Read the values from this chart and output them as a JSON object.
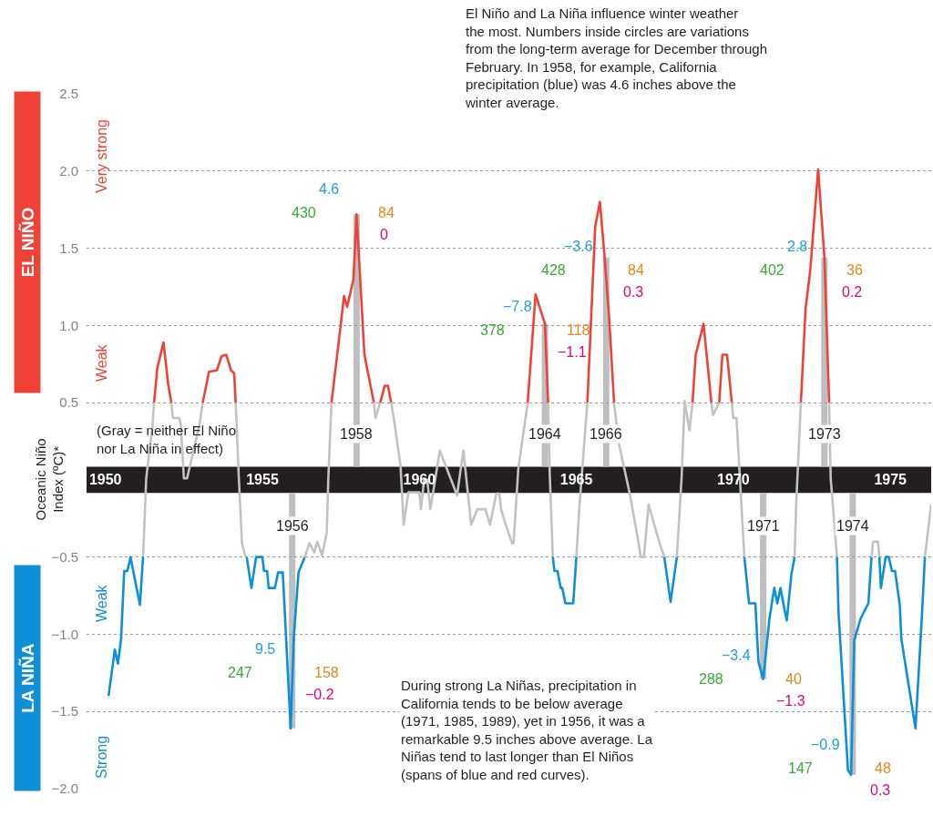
{
  "chart_data": {
    "type": "line",
    "ylabel": "Oceanic Niño Index (ºC)*",
    "xlim": [
      1949.4,
      1976.3
    ],
    "xticks": [
      1950,
      1955,
      1960,
      1965,
      1970,
      1975
    ],
    "ylim": [
      -2.0,
      2.5
    ],
    "yticks": [
      {
        "value": -2,
        "label": "−2.0"
      },
      {
        "value": -1.5,
        "label": "−1.5"
      },
      {
        "value": -1,
        "label": "−1.0"
      },
      {
        "value": -0.5,
        "label": "−0.5"
      },
      {
        "value": 0.5,
        "label": "0.5"
      },
      {
        "value": 1,
        "label": "1.0"
      },
      {
        "value": 1.5,
        "label": "1.5"
      },
      {
        "value": 2,
        "label": "2.0"
      },
      {
        "value": 2.5,
        "label": "2.5"
      }
    ],
    "grid": "y",
    "line_style": "solid",
    "marker": "none",
    "series": [
      {
        "color": "#c2c2c2",
        "x": [
          1951.2,
          1951.3,
          1951.5,
          1951.55,
          1951.8,
          1952.1,
          1952.15,
          1952.35,
          1952.4,
          1952.5,
          1952.6,
          1953.0,
          1953.1,
          1953.6,
          1954.15,
          1954.25,
          1954.35,
          1954.45,
          1954.5,
          1955.4,
          1956.35,
          1956.5,
          1956.65,
          1956.75,
          1956.9,
          1957.05,
          1957.1,
          1957.2,
          1957.9,
          1958.55,
          1958.6,
          1958.75,
          1958.9,
          1959.1,
          1959.2,
          1959.4,
          1959.5,
          1959.65,
          1960.0,
          1960.05,
          1960.15,
          1960.25,
          1960.35,
          1960.65,
          1961.2,
          1961.4,
          1961.65,
          1961.85,
          1962.1,
          1962.25,
          1962.45,
          1962.55,
          1962.6,
          1962.75,
          1962.95,
          1963.0,
          1963.15,
          1963.45,
          1963.8,
          1964.1,
          1964.15,
          1964.25,
          1964.6,
          1965.0,
          1965.1,
          1965.35,
          1965.8,
          1966.2,
          1966.35,
          1966.7,
          1966.95,
          1967.05,
          1967.15,
          1967.3,
          1967.65,
          1967.8,
          1968.0,
          1968.2,
          1968.35,
          1968.45,
          1968.6,
          1968.7,
          1969.0,
          1969.3,
          1969.35,
          1969.55,
          1969.7,
          1969.95,
          1970.0,
          1970.1,
          1970.35,
          1971.2,
          1971.95,
          1972.0,
          1972.15,
          1972.6,
          1973.05,
          1973.1,
          1973.3,
          1973.9,
          1974.4,
          1974.45,
          1974.6,
          1974.65,
          1975.4,
          1976.1,
          1976.3
        ],
        "values": [
          -0.5,
          0.01,
          0.35,
          0.5,
          null,
          0.5,
          0.4,
          0.4,
          0.36,
          0.01,
          0.01,
          0.36,
          0.5,
          null,
          0.5,
          0.01,
          -0.41,
          -0.49,
          -0.5,
          null,
          -0.5,
          -0.41,
          -0.47,
          -0.4,
          -0.49,
          -0.34,
          0.01,
          0.5,
          null,
          0.5,
          0.4,
          0.5,
          null,
          0.5,
          0.38,
          0.09,
          -0.29,
          -0.08,
          -0.08,
          -0.19,
          0,
          0,
          -0.19,
          0.19,
          -0.1,
          0.19,
          -0.29,
          -0.19,
          -0.19,
          -0.29,
          -0.09,
          -0.09,
          -0.19,
          -0.29,
          -0.41,
          -0.41,
          0.07,
          0.5,
          null,
          0.5,
          0.05,
          -0.5,
          null,
          -0.5,
          -0.16,
          0.5,
          null,
          0.5,
          0.24,
          -0.09,
          -0.37,
          -0.5,
          -0.5,
          -0.16,
          -0.41,
          -0.5,
          null,
          -0.5,
          0.01,
          0.51,
          0.32,
          0.5,
          null,
          0.5,
          0.42,
          0.5,
          null,
          0.5,
          0.4,
          0.4,
          -0.5,
          null,
          -0.5,
          -0.16,
          0.5,
          null,
          0.5,
          0.01,
          -0.5,
          null,
          -0.5,
          -0.4,
          -0.4,
          -0.5,
          null,
          -0.5,
          -0.16
        ]
      },
      {
        "color": "#ef4136",
        "x": [
          1951.55,
          1951.65,
          1951.85,
          1952.0,
          1952.1,
          1952.6,
          1953.1,
          1953.3,
          1953.55,
          1953.7,
          1953.85,
          1954.0,
          1954.1,
          1954.15,
          1955.5,
          1957.2,
          1957.5,
          1957.6,
          1957.7,
          1957.9,
          1958.0,
          1958.25,
          1958.55,
          1958.65,
          1958.75,
          1958.9,
          1959.0,
          1959.1,
          1961.0,
          1963.45,
          1963.7,
          1964.0,
          1964.1,
          1964.8,
          1965.35,
          1965.6,
          1965.75,
          1965.9,
          1966.05,
          1966.2,
          1967.5,
          1968.7,
          1968.8,
          1969.05,
          1969.3,
          1969.4,
          1969.55,
          1969.65,
          1969.8,
          1969.95,
          1971.0,
          1972.15,
          1972.3,
          1972.45,
          1972.7,
          1972.9,
          1973.05
        ],
        "values": [
          0.5,
          0.72,
          0.89,
          0.62,
          0.5,
          null,
          0.5,
          0.7,
          0.71,
          0.8,
          0.81,
          0.71,
          0.69,
          0.5,
          null,
          0.5,
          1.01,
          1.19,
          1.12,
          1.3,
          1.72,
          0.81,
          0.5,
          null,
          0.5,
          0.61,
          0.61,
          0.5,
          null,
          0.5,
          1.2,
          1.01,
          0.5,
          null,
          0.5,
          1.64,
          1.8,
          1.44,
          1.03,
          0.5,
          null,
          0.5,
          0.81,
          1.01,
          0.5,
          null,
          0.5,
          0.81,
          0.81,
          0.5,
          null,
          0.5,
          1.11,
          1.36,
          2.01,
          1.44,
          0.5
        ]
      },
      {
        "color": "#0a8fd8",
        "x": [
          1950.1,
          1950.3,
          1950.4,
          1950.5,
          1950.6,
          1950.7,
          1950.8,
          1951.1,
          1951.2,
          1953.0,
          1954.5,
          1954.65,
          1954.8,
          1955.0,
          1955.05,
          1955.15,
          1955.2,
          1955.4,
          1955.5,
          1955.65,
          1955.9,
          1956.0,
          1956.15,
          1956.35,
          1960.0,
          1964.25,
          1964.3,
          1964.4,
          1964.5,
          1964.55,
          1964.65,
          1964.9,
          1965.0,
          1966.5,
          1967.8,
          1968.0,
          1968.2,
          1969.0,
          1970.35,
          1970.5,
          1970.7,
          1970.8,
          1970.95,
          1971.15,
          1971.3,
          1971.4,
          1971.5,
          1971.6,
          1971.7,
          1971.85,
          1971.95,
          1972.5,
          1973.3,
          1973.35,
          1973.65,
          1973.75,
          1973.85,
          1974.05,
          1974.3,
          1974.4,
          1974.5,
          1974.65,
          1974.7,
          1974.85,
          1974.95,
          1975.05,
          1975.15,
          1975.3,
          1975.35,
          1975.8,
          1976.0,
          1976.1
        ],
        "values": [
          -1.4,
          -1.1,
          -1.19,
          -1.03,
          -0.59,
          -0.59,
          -0.5,
          -0.81,
          -0.5,
          null,
          -0.5,
          -0.7,
          -0.5,
          -0.5,
          -0.59,
          -0.59,
          -0.7,
          -0.7,
          -0.6,
          -0.6,
          -1.61,
          -1.02,
          -0.6,
          -0.5,
          null,
          -0.5,
          -0.59,
          -0.59,
          -0.7,
          -0.7,
          -0.8,
          -0.8,
          -0.5,
          null,
          -0.5,
          -0.79,
          -0.5,
          null,
          -0.5,
          -0.8,
          -0.8,
          -1.18,
          -1.29,
          -0.9,
          -0.7,
          -0.8,
          -0.7,
          -0.81,
          -0.91,
          -0.61,
          -0.5,
          null,
          -0.5,
          -0.86,
          -1.88,
          -1.91,
          -1.04,
          -0.9,
          -0.8,
          -0.5,
          null,
          -0.5,
          -0.7,
          -0.5,
          -0.5,
          -0.59,
          -0.59,
          -0.81,
          -1.03,
          -1.61,
          -0.9,
          -0.5
        ]
      }
    ],
    "ref_lines": [
      {
        "axis": "x",
        "value": 1955.95,
        "label": "1956",
        "color": "#bcbec0"
      },
      {
        "axis": "x",
        "value": 1958.0,
        "label": "1958",
        "color": "#bcbec0"
      },
      {
        "axis": "x",
        "value": 1964.0,
        "label": "1964",
        "color": "#bcbec0"
      },
      {
        "axis": "x",
        "value": 1965.95,
        "label": "1966",
        "color": "#bcbec0"
      },
      {
        "axis": "x",
        "value": 1970.95,
        "label": "1971",
        "color": "#bcbec0"
      },
      {
        "axis": "x",
        "value": 1972.9,
        "label": "1973",
        "color": "#bcbec0"
      },
      {
        "axis": "x",
        "value": 1973.8,
        "label": "1974",
        "color": "#bcbec0"
      }
    ],
    "annotations": [
      "El Niño and La Niña influence winter weather the most. Numbers inside circles are variations from the long-term average for December through February. In 1958, for example, California precipitation (blue) was 4.6 inches above the winter average.",
      "(Gray = neither El Niño nor La Niña in effect)",
      "During strong La Niñas, precipitation in California tends to be below average (1971, 1985, 1989), yet in 1956, it was a remarkable 9.5 inches above average. La Niñas tend to last longer than El Niños (spans of blue and red curves).",
      "EL NIÑO",
      "LA NIÑA",
      "Very strong",
      "Weak",
      "Weak",
      "Strong",
      {
        "text": "430",
        "x": 1958.0,
        "y": 1.73
      },
      {
        "text": "4.6",
        "x": 1958.0,
        "y": 1.73
      },
      {
        "text": "0",
        "x": 1958.0,
        "y": 1.73
      },
      {
        "text": "84",
        "x": 1958.0,
        "y": 1.73
      },
      {
        "text": "378",
        "x": 1964.0,
        "y": 0.97
      },
      {
        "text": "−7.8",
        "x": 1964.0,
        "y": 0.97
      },
      {
        "text": "−1.1",
        "x": 1964.0,
        "y": 0.97
      },
      {
        "text": "118",
        "x": 1964.0,
        "y": 0.97
      },
      {
        "text": "428",
        "x": 1965.95,
        "y": 1.36
      },
      {
        "text": "−3.6",
        "x": 1965.95,
        "y": 1.36
      },
      {
        "text": "0.3",
        "x": 1965.95,
        "y": 1.36
      },
      {
        "text": "84",
        "x": 1965.95,
        "y": 1.36
      },
      {
        "text": "402",
        "x": 1972.9,
        "y": 1.36
      },
      {
        "text": "2.8",
        "x": 1972.9,
        "y": 1.36
      },
      {
        "text": "0.2",
        "x": 1972.9,
        "y": 1.36
      },
      {
        "text": "36",
        "x": 1972.9,
        "y": 1.36
      },
      {
        "text": "247",
        "x": 1955.95,
        "y": -1.25
      },
      {
        "text": "9.5",
        "x": 1955.95,
        "y": -1.25
      },
      {
        "text": "−0.2",
        "x": 1955.95,
        "y": -1.25
      },
      {
        "text": "158",
        "x": 1955.95,
        "y": -1.25
      },
      {
        "text": "288",
        "x": 1970.95,
        "y": -1.29
      },
      {
        "text": "−3.4",
        "x": 1970.95,
        "y": -1.29
      },
      {
        "text": "−1.3",
        "x": 1970.95,
        "y": -1.29
      },
      {
        "text": "40",
        "x": 1970.95,
        "y": -1.29
      },
      {
        "text": "147",
        "x": 1973.8,
        "y": -1.87
      },
      {
        "text": "−0.9",
        "x": 1973.8,
        "y": -1.87
      },
      {
        "text": "0.3",
        "x": 1973.8,
        "y": -1.87
      },
      {
        "text": "48",
        "x": 1973.8,
        "y": -1.87
      }
    ]
  }
}
